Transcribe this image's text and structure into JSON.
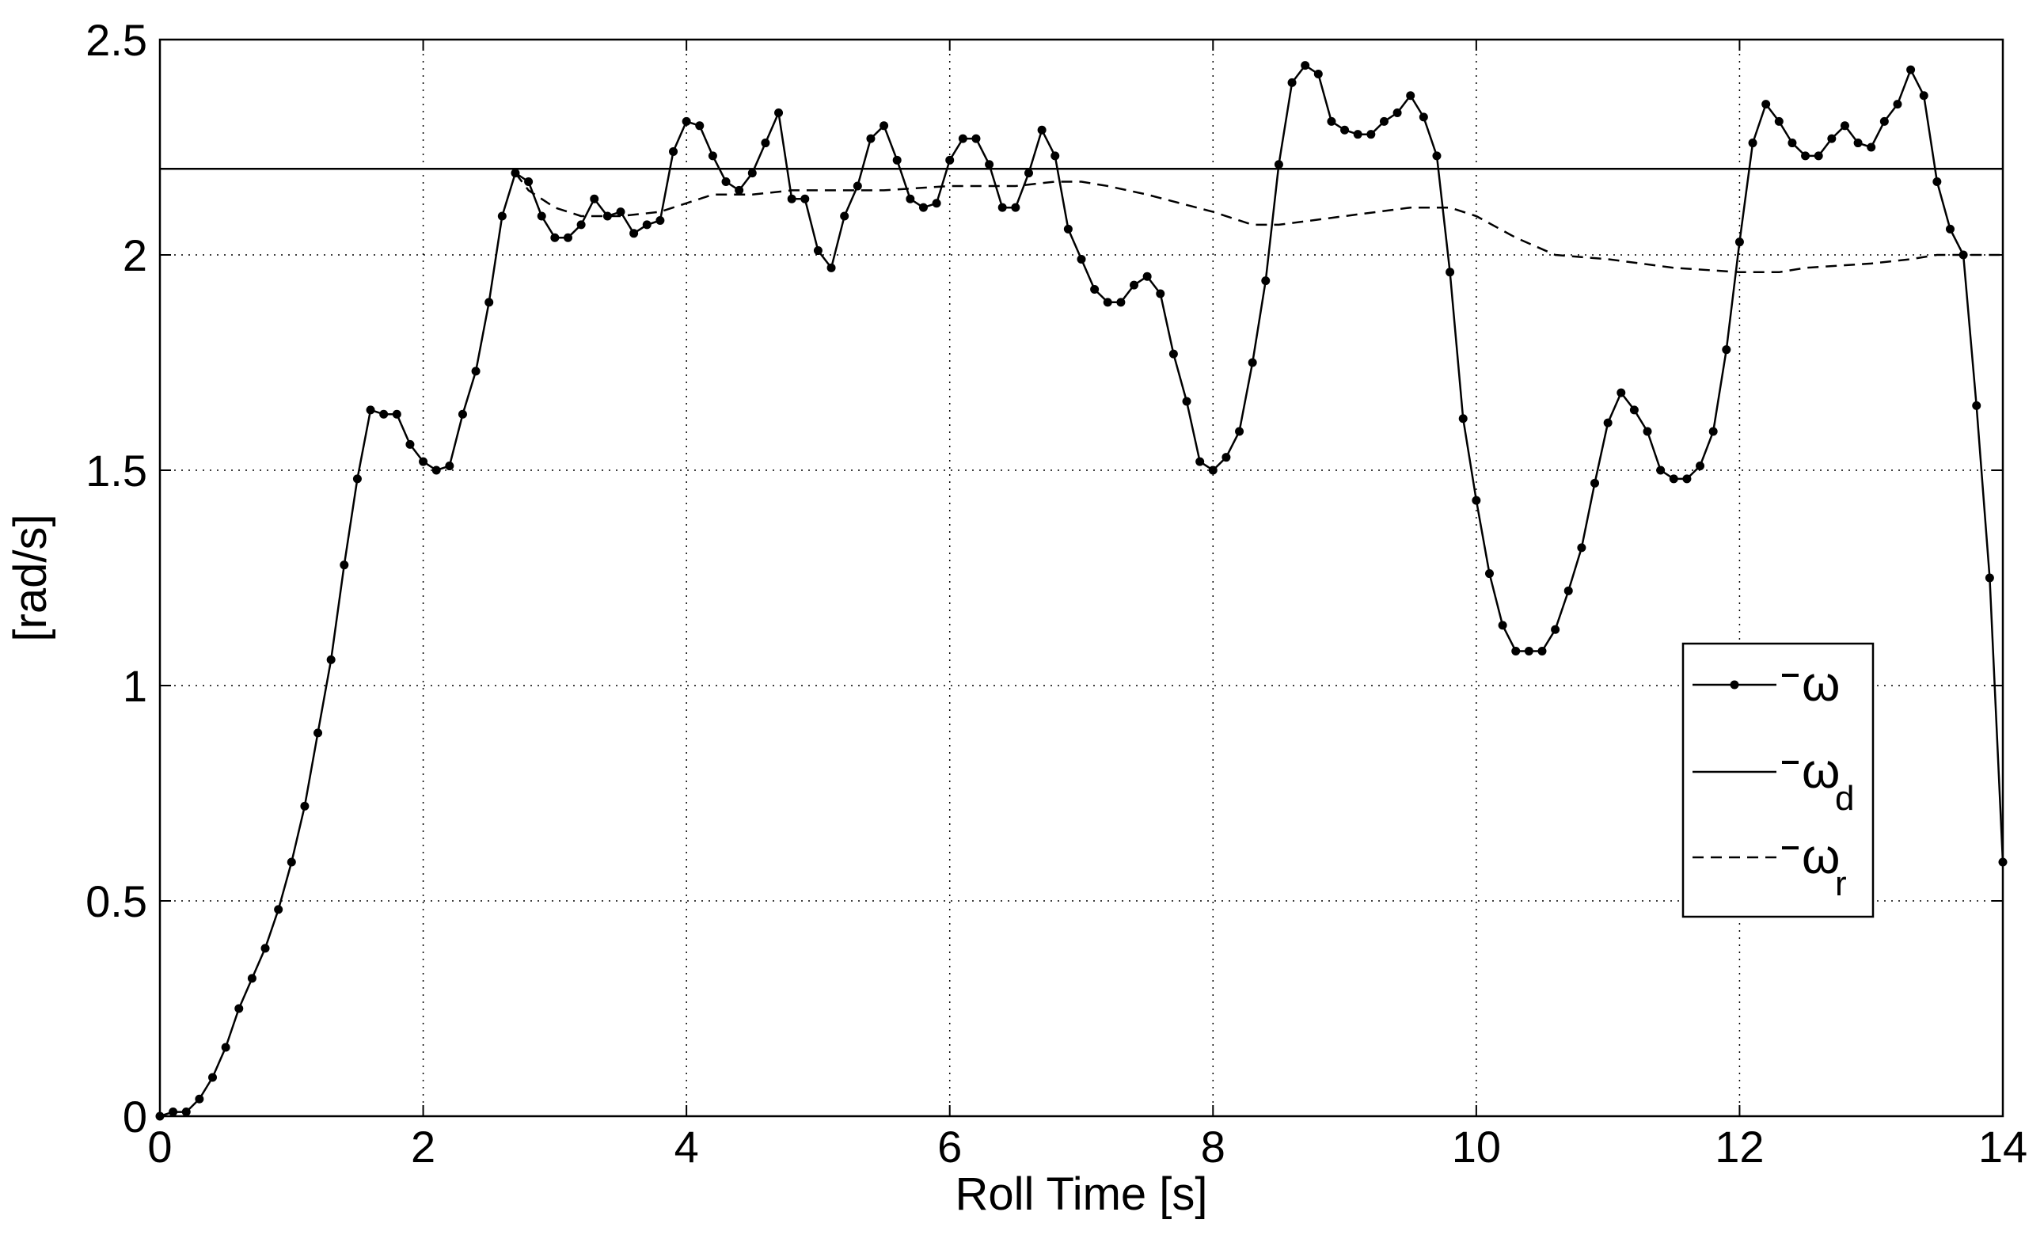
{
  "chart_data": {
    "type": "line",
    "title": "",
    "xlabel": "Roll Time [s]",
    "ylabel": "[rad/s]",
    "xlim": [
      0,
      14
    ],
    "ylim": [
      0,
      2.5
    ],
    "xticks": [
      0,
      2,
      4,
      6,
      8,
      10,
      12,
      14
    ],
    "xtick_labels": [
      "0",
      "2",
      "4",
      "6",
      "8",
      "10",
      "12",
      "14"
    ],
    "yticks": [
      0,
      0.5,
      1,
      1.5,
      2,
      2.5
    ],
    "ytick_labels": [
      "0",
      "0.5",
      "1",
      "1.5",
      "2",
      "2.5"
    ],
    "grid": true,
    "legend_position": "right",
    "series": [
      {
        "name": "ω",
        "legend_text": "ω",
        "legend_sub": "",
        "style": "solid-dots",
        "color": "#000000",
        "x": [
          0,
          0.1,
          0.2,
          0.3,
          0.4,
          0.5,
          0.6,
          0.7,
          0.8,
          0.9,
          1.0,
          1.1,
          1.2,
          1.3,
          1.4,
          1.5,
          1.6,
          1.7,
          1.8,
          1.9,
          2.0,
          2.1,
          2.2,
          2.3,
          2.4,
          2.5,
          2.6,
          2.7,
          2.8,
          2.9,
          3.0,
          3.1,
          3.2,
          3.3,
          3.4,
          3.5,
          3.6,
          3.7,
          3.8,
          3.9,
          4.0,
          4.1,
          4.2,
          4.3,
          4.4,
          4.5,
          4.6,
          4.7,
          4.8,
          4.9,
          5.0,
          5.1,
          5.2,
          5.3,
          5.4,
          5.5,
          5.6,
          5.7,
          5.8,
          5.9,
          6.0,
          6.1,
          6.2,
          6.3,
          6.4,
          6.5,
          6.6,
          6.7,
          6.8,
          6.9,
          7.0,
          7.1,
          7.2,
          7.3,
          7.4,
          7.5,
          7.6,
          7.7,
          7.8,
          7.9,
          8.0,
          8.1,
          8.2,
          8.3,
          8.4,
          8.5,
          8.6,
          8.7,
          8.8,
          8.9,
          9.0,
          9.1,
          9.2,
          9.3,
          9.4,
          9.5,
          9.6,
          9.7,
          9.8,
          9.9,
          10.0,
          10.1,
          10.2,
          10.3,
          10.4,
          10.5,
          10.6,
          10.7,
          10.8,
          10.9,
          11.0,
          11.1,
          11.2,
          11.3,
          11.4,
          11.5,
          11.6,
          11.7,
          11.8,
          11.9,
          12.0,
          12.1,
          12.2,
          12.3,
          12.4,
          12.5,
          12.6,
          12.7,
          12.8,
          12.9,
          13.0,
          13.1,
          13.2,
          13.3,
          13.4,
          13.5,
          13.6,
          13.7,
          13.8,
          13.9,
          14.0
        ],
        "values": [
          0,
          0.01,
          0.01,
          0.04,
          0.09,
          0.16,
          0.25,
          0.32,
          0.39,
          0.48,
          0.59,
          0.72,
          0.89,
          1.06,
          1.28,
          1.48,
          1.64,
          1.63,
          1.63,
          1.56,
          1.52,
          1.5,
          1.51,
          1.63,
          1.73,
          1.89,
          2.09,
          2.19,
          2.17,
          2.09,
          2.04,
          2.04,
          2.07,
          2.13,
          2.09,
          2.1,
          2.05,
          2.07,
          2.08,
          2.24,
          2.31,
          2.3,
          2.23,
          2.17,
          2.15,
          2.19,
          2.26,
          2.33,
          2.13,
          2.13,
          2.01,
          1.97,
          2.09,
          2.16,
          2.27,
          2.3,
          2.22,
          2.13,
          2.11,
          2.12,
          2.22,
          2.27,
          2.27,
          2.21,
          2.11,
          2.11,
          2.19,
          2.29,
          2.23,
          2.06,
          1.99,
          1.92,
          1.89,
          1.89,
          1.93,
          1.95,
          1.91,
          1.77,
          1.66,
          1.52,
          1.5,
          1.53,
          1.59,
          1.75,
          1.94,
          2.21,
          2.4,
          2.44,
          2.42,
          2.31,
          2.29,
          2.28,
          2.28,
          2.31,
          2.33,
          2.37,
          2.32,
          2.23,
          1.96,
          1.62,
          1.43,
          1.26,
          1.14,
          1.08,
          1.08,
          1.08,
          1.13,
          1.22,
          1.32,
          1.47,
          1.61,
          1.68,
          1.64,
          1.59,
          1.5,
          1.48,
          1.48,
          1.51,
          1.59,
          1.78,
          2.03,
          2.26,
          2.35,
          2.31,
          2.26,
          2.23,
          2.23,
          2.27,
          2.3,
          2.26,
          2.25,
          2.31,
          2.35,
          2.43,
          2.37,
          2.17,
          2.06,
          2.0,
          1.65,
          1.25,
          0.59
        ]
      },
      {
        "name": "ω_d",
        "legend_text": "ω",
        "legend_sub": "d",
        "style": "solid",
        "color": "#000000",
        "x": [
          0,
          14
        ],
        "values": [
          2.2,
          2.2
        ]
      },
      {
        "name": "ω_r",
        "legend_text": "ω",
        "legend_sub": "r",
        "style": "dashed",
        "color": "#000000",
        "x": [
          2.7,
          2.8,
          3.0,
          3.2,
          3.5,
          3.8,
          4.0,
          4.2,
          4.5,
          4.8,
          5.0,
          5.5,
          6.0,
          6.5,
          6.8,
          7.0,
          7.2,
          7.5,
          8.0,
          8.3,
          8.5,
          9.0,
          9.5,
          9.8,
          10.0,
          10.3,
          10.6,
          11.0,
          11.5,
          12.0,
          12.3,
          12.5,
          13.0,
          13.3,
          13.5,
          14.0
        ],
        "values": [
          2.19,
          2.15,
          2.11,
          2.09,
          2.09,
          2.1,
          2.12,
          2.14,
          2.14,
          2.15,
          2.15,
          2.15,
          2.16,
          2.16,
          2.17,
          2.17,
          2.16,
          2.14,
          2.1,
          2.07,
          2.07,
          2.09,
          2.11,
          2.11,
          2.09,
          2.04,
          2.0,
          1.99,
          1.97,
          1.96,
          1.96,
          1.97,
          1.98,
          1.99,
          2.0,
          2.0
        ]
      }
    ]
  }
}
